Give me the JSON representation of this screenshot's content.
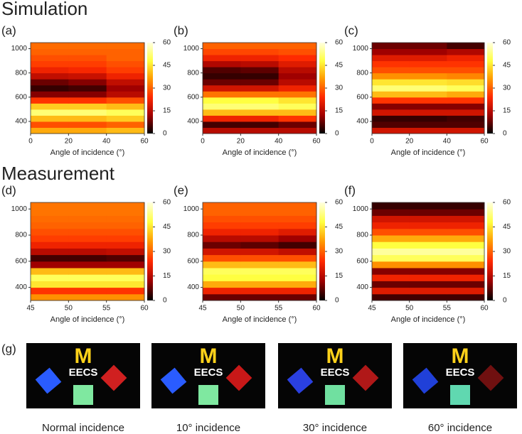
{
  "sections": {
    "simulation": "Simulation",
    "measurement": "Measurement"
  },
  "chart_data": [
    {
      "type": "heatmap",
      "label": "(a)",
      "xlabel": "Angle of incidence (°)",
      "x": [
        10,
        30,
        50
      ],
      "y": [
        325,
        375,
        425,
        475,
        525,
        575,
        625,
        675,
        725,
        775,
        825,
        875,
        925,
        975,
        1025
      ],
      "values": [
        [
          38,
          38,
          40
        ],
        [
          28,
          28,
          30
        ],
        [
          40,
          40,
          42
        ],
        [
          52,
          52,
          50
        ],
        [
          42,
          42,
          40
        ],
        [
          25,
          25,
          28
        ],
        [
          10,
          10,
          15
        ],
        [
          4,
          5,
          12
        ],
        [
          8,
          10,
          16
        ],
        [
          16,
          17,
          22
        ],
        [
          22,
          23,
          26
        ],
        [
          26,
          26,
          28
        ],
        [
          28,
          28,
          30
        ],
        [
          30,
          30,
          30
        ],
        [
          31,
          31,
          31
        ]
      ],
      "xlim": [
        0,
        60
      ],
      "xticks": [
        0,
        20,
        40,
        60
      ],
      "ylim": [
        300,
        1050
      ],
      "yticks": [
        400,
        600,
        800,
        1000
      ],
      "colorbar": {
        "lim": [
          0,
          60
        ],
        "ticks": [
          0,
          15,
          30,
          45,
          60
        ]
      },
      "colormap": [
        "#000000",
        "#a00000",
        "#ff2a00",
        "#ff9900",
        "#ffff40",
        "#ffffe0"
      ]
    },
    {
      "type": "heatmap",
      "label": "(b)",
      "xlabel": "Angle of incidence (°)",
      "x": [
        10,
        30,
        50
      ],
      "y": [
        325,
        375,
        425,
        475,
        525,
        575,
        625,
        675,
        725,
        775,
        825,
        875,
        925,
        975,
        1025
      ],
      "values": [
        [
          15,
          15,
          15
        ],
        [
          5,
          5,
          8
        ],
        [
          22,
          22,
          25
        ],
        [
          40,
          40,
          40
        ],
        [
          52,
          52,
          50
        ],
        [
          48,
          48,
          45
        ],
        [
          32,
          32,
          32
        ],
        [
          18,
          18,
          22
        ],
        [
          8,
          8,
          15
        ],
        [
          4,
          4,
          12
        ],
        [
          6,
          7,
          15
        ],
        [
          14,
          15,
          20
        ],
        [
          22,
          22,
          24
        ],
        [
          27,
          27,
          28
        ],
        [
          30,
          30,
          30
        ]
      ],
      "xlim": [
        0,
        60
      ],
      "xticks": [
        0,
        20,
        40,
        60
      ],
      "ylim": [
        300,
        1050
      ],
      "yticks": [
        400,
        600,
        800,
        1000
      ],
      "colorbar": {
        "lim": [
          0,
          60
        ],
        "ticks": [
          0,
          15,
          30,
          45,
          60
        ]
      },
      "colormap": [
        "#000000",
        "#a00000",
        "#ff2a00",
        "#ff9900",
        "#ffff40",
        "#ffffe0"
      ]
    },
    {
      "type": "heatmap",
      "label": "(c)",
      "xlabel": "Angle of incidence (°)",
      "x": [
        10,
        30,
        50
      ],
      "y": [
        325,
        375,
        425,
        475,
        525,
        575,
        625,
        675,
        725,
        775,
        825,
        875,
        925,
        975,
        1025
      ],
      "values": [
        [
          18,
          18,
          18
        ],
        [
          6,
          6,
          6
        ],
        [
          4,
          4,
          5
        ],
        [
          18,
          18,
          18
        ],
        [
          10,
          10,
          10
        ],
        [
          25,
          25,
          25
        ],
        [
          40,
          40,
          38
        ],
        [
          52,
          52,
          50
        ],
        [
          45,
          45,
          44
        ],
        [
          35,
          35,
          34
        ],
        [
          28,
          28,
          28
        ],
        [
          25,
          25,
          25
        ],
        [
          20,
          20,
          22
        ],
        [
          12,
          12,
          14
        ],
        [
          8,
          8,
          5
        ]
      ],
      "xlim": [
        0,
        60
      ],
      "xticks": [
        0,
        20,
        40,
        60
      ],
      "ylim": [
        300,
        1050
      ],
      "yticks": [
        400,
        600,
        800,
        1000
      ],
      "colorbar": {
        "lim": [
          0,
          60
        ],
        "ticks": [
          0,
          15,
          30,
          45,
          60
        ]
      },
      "colormap": [
        "#000000",
        "#a00000",
        "#ff2a00",
        "#ff9900",
        "#ffff40",
        "#ffffe0"
      ]
    },
    {
      "type": "heatmap",
      "label": "(d)",
      "xlabel": "Angle of incidence (°)",
      "x": [
        47.5,
        52.5,
        57.5
      ],
      "y": [
        325,
        375,
        425,
        475,
        525,
        575,
        625,
        675,
        725,
        775,
        825,
        875,
        925,
        975,
        1025
      ],
      "values": [
        [
          35,
          35,
          35
        ],
        [
          25,
          25,
          25
        ],
        [
          45,
          45,
          45
        ],
        [
          50,
          50,
          50
        ],
        [
          40,
          40,
          40
        ],
        [
          12,
          12,
          12
        ],
        [
          5,
          5,
          6
        ],
        [
          15,
          15,
          16
        ],
        [
          22,
          22,
          22
        ],
        [
          26,
          26,
          26
        ],
        [
          28,
          28,
          28
        ],
        [
          30,
          30,
          30
        ],
        [
          31,
          31,
          31
        ],
        [
          32,
          32,
          32
        ],
        [
          32,
          32,
          32
        ]
      ],
      "xlim": [
        45,
        60
      ],
      "xticks": [
        45,
        50,
        55,
        60
      ],
      "ylim": [
        300,
        1050
      ],
      "yticks": [
        400,
        600,
        800,
        1000
      ],
      "colorbar": {
        "lim": [
          0,
          60
        ],
        "ticks": [
          0,
          15,
          30,
          45,
          60
        ]
      },
      "colormap": [
        "#000000",
        "#a00000",
        "#ff2a00",
        "#ff9900",
        "#ffff40",
        "#ffffe0"
      ]
    },
    {
      "type": "heatmap",
      "label": "(e)",
      "xlabel": "Angle of incidence (°)",
      "x": [
        47.5,
        52.5,
        57.5
      ],
      "y": [
        325,
        375,
        425,
        475,
        525,
        575,
        625,
        675,
        725,
        775,
        825,
        875,
        925,
        975,
        1025
      ],
      "values": [
        [
          8,
          8,
          8
        ],
        [
          22,
          22,
          22
        ],
        [
          38,
          38,
          38
        ],
        [
          48,
          48,
          48
        ],
        [
          50,
          50,
          50
        ],
        [
          40,
          40,
          40
        ],
        [
          28,
          28,
          28
        ],
        [
          18,
          18,
          16
        ],
        [
          8,
          7,
          5
        ],
        [
          15,
          15,
          12
        ],
        [
          22,
          22,
          20
        ],
        [
          26,
          26,
          26
        ],
        [
          28,
          28,
          28
        ],
        [
          30,
          30,
          30
        ],
        [
          30,
          30,
          30
        ]
      ],
      "xlim": [
        45,
        60
      ],
      "xticks": [
        45,
        50,
        55,
        60
      ],
      "ylim": [
        300,
        1050
      ],
      "yticks": [
        400,
        600,
        800,
        1000
      ],
      "colorbar": {
        "lim": [
          0,
          60
        ],
        "ticks": [
          0,
          15,
          30,
          45,
          60
        ]
      },
      "colormap": [
        "#000000",
        "#a00000",
        "#ff2a00",
        "#ff9900",
        "#ffff40",
        "#ffffe0"
      ]
    },
    {
      "type": "heatmap",
      "label": "(f)",
      "xlabel": "Angle of incidence (°)",
      "x": [
        47.5,
        52.5,
        57.5
      ],
      "y": [
        325,
        375,
        425,
        475,
        525,
        575,
        625,
        675,
        725,
        775,
        825,
        875,
        925,
        975,
        1025
      ],
      "values": [
        [
          5,
          5,
          5
        ],
        [
          20,
          20,
          20
        ],
        [
          8,
          8,
          8
        ],
        [
          22,
          22,
          22
        ],
        [
          10,
          10,
          10
        ],
        [
          35,
          35,
          35
        ],
        [
          50,
          50,
          50
        ],
        [
          55,
          55,
          55
        ],
        [
          48,
          48,
          48
        ],
        [
          38,
          38,
          38
        ],
        [
          28,
          28,
          28
        ],
        [
          22,
          22,
          22
        ],
        [
          18,
          18,
          18
        ],
        [
          8,
          8,
          8
        ],
        [
          4,
          4,
          4
        ]
      ],
      "xlim": [
        45,
        60
      ],
      "xticks": [
        45,
        50,
        55,
        60
      ],
      "ylim": [
        300,
        1050
      ],
      "yticks": [
        400,
        600,
        800,
        1000
      ],
      "colorbar": {
        "lim": [
          0,
          60
        ],
        "ticks": [
          0,
          15,
          30,
          45,
          60
        ]
      },
      "colormap": [
        "#000000",
        "#a00000",
        "#ff2a00",
        "#ff9900",
        "#ffff40",
        "#ffffe0"
      ]
    }
  ],
  "photos": {
    "label": "(g)",
    "logo": {
      "m": "M",
      "text": "EECS"
    },
    "captions": [
      "Normal incidence",
      "10° incidence",
      "30° incidence",
      "60° incidence"
    ]
  }
}
